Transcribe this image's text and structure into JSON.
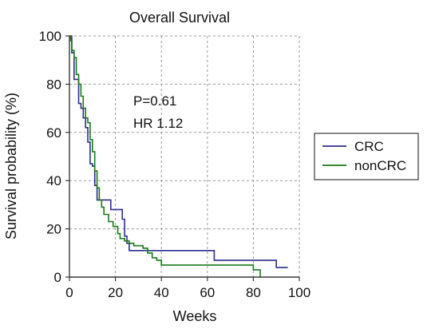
{
  "chart_data": {
    "type": "line",
    "title": "Overall Survival",
    "xlabel": "Weeks",
    "ylabel": "Survival probability (%)",
    "xlim": [
      0,
      100
    ],
    "ylim": [
      0,
      100
    ],
    "xticks": [
      "0",
      "20",
      "40",
      "60",
      "80",
      "100"
    ],
    "yticks": [
      "0",
      "20",
      "40",
      "60",
      "80",
      "100"
    ],
    "grid": true,
    "legend_position": "right",
    "annotations": [
      "P=0.61",
      "HR 1.12"
    ],
    "step": true,
    "series": [
      {
        "name": "CRC",
        "color": "#2b2f8f",
        "x": [
          0,
          1,
          2,
          3,
          4,
          5,
          6,
          7,
          8,
          9,
          10,
          11,
          12,
          15,
          18,
          20,
          21,
          22,
          23,
          24,
          25,
          26,
          63,
          90,
          95
        ],
        "y": [
          100,
          93,
          82,
          82,
          72,
          70,
          66,
          62,
          56,
          47,
          46,
          38,
          32,
          32,
          28,
          28,
          28,
          28,
          24,
          17,
          14,
          11,
          7,
          4,
          4
        ]
      },
      {
        "name": "nonCRC",
        "color": "#1a7a1a",
        "x": [
          0,
          0.5,
          1,
          2,
          3,
          4,
          5,
          6,
          7,
          8,
          9,
          10,
          11,
          12,
          13,
          14,
          15,
          17,
          19,
          21,
          22,
          24,
          26,
          28,
          30,
          32,
          34,
          36,
          38,
          40,
          50,
          60,
          70,
          75,
          80,
          82,
          83
        ],
        "y": [
          100,
          98,
          94,
          91,
          84,
          80,
          75,
          70,
          66,
          64,
          57,
          52,
          44,
          37,
          32,
          29,
          26,
          23,
          21,
          18,
          16,
          15,
          14,
          13,
          13,
          12,
          10,
          8,
          7,
          5,
          5,
          5,
          5,
          5,
          3,
          3,
          0
        ]
      }
    ]
  }
}
